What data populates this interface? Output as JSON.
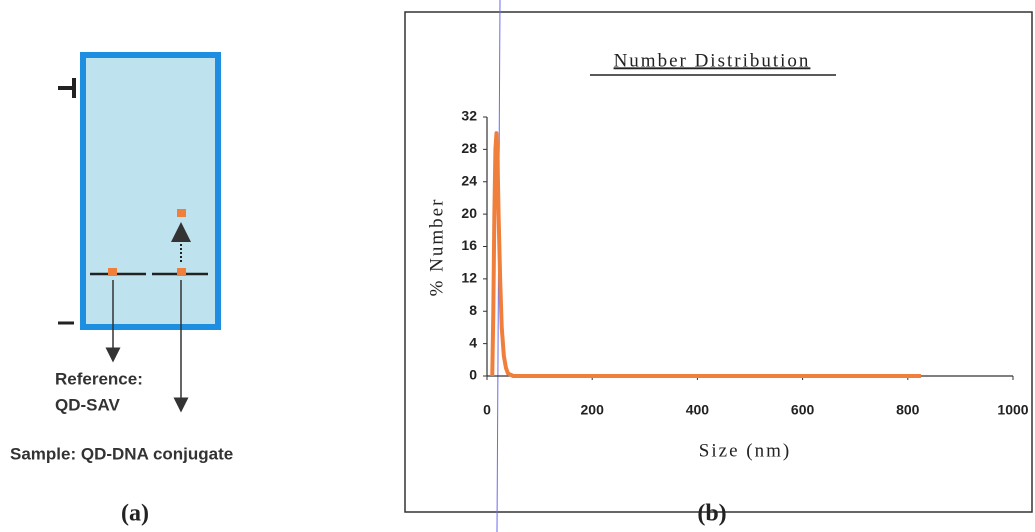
{
  "panel_a": {
    "reference_label": "Reference:",
    "reference_name": "QD-SAV",
    "sample_label": "Sample: QD-DNA conjugate",
    "caption": "(a)"
  },
  "chart_data": {
    "type": "line",
    "title": "Number Distribution",
    "x_label": "Size (nm)",
    "y_label": "% Number",
    "caption": "(b)",
    "x": [
      10,
      12,
      14,
      16,
      18,
      20,
      22,
      25,
      28,
      32,
      36,
      40,
      50,
      100,
      200,
      400,
      600,
      800,
      825
    ],
    "values": [
      0,
      8,
      20,
      28,
      30,
      27,
      20,
      12,
      6,
      2.5,
      1,
      0.3,
      0,
      0,
      0,
      0,
      0,
      0,
      0
    ],
    "color": "#f07f3c",
    "xlim": [
      0,
      1000
    ],
    "xticks": [
      0,
      200,
      400,
      600,
      800,
      1000
    ],
    "ylim": [
      0,
      32
    ],
    "yticks": [
      0,
      4,
      8,
      12,
      16,
      20,
      24,
      28,
      32
    ],
    "grid": false
  }
}
